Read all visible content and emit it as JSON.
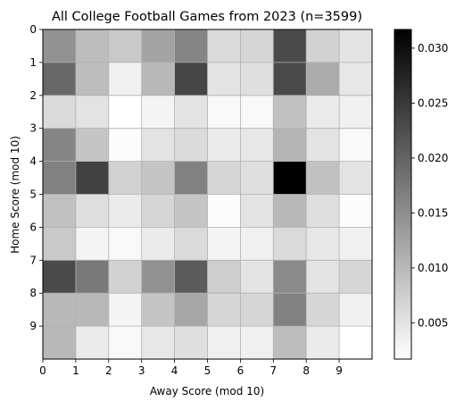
{
  "chart_data": {
    "type": "heatmap",
    "title": "All College Football Games from 2023 (n=3599)",
    "xlabel": "Away Score (mod 10)",
    "ylabel": "Home Score (mod 10)",
    "x_ticks": [
      "0",
      "1",
      "2",
      "3",
      "4",
      "5",
      "6",
      "7",
      "8",
      "9"
    ],
    "y_ticks": [
      "0",
      "1",
      "2",
      "3",
      "4",
      "5",
      "6",
      "7",
      "8",
      "9"
    ],
    "grid": true,
    "colormap": "Greys",
    "colorbar": {
      "range": [
        0.0017,
        0.0317
      ],
      "ticks": [
        "0.005",
        "0.010",
        "0.015",
        "0.020",
        "0.025",
        "0.030"
      ],
      "tick_values": [
        0.005,
        0.01,
        0.015,
        0.02,
        0.025,
        0.03
      ]
    },
    "values": [
      [
        0.0145,
        0.0095,
        0.008,
        0.0125,
        0.016,
        0.006,
        0.0065,
        0.023,
        0.007,
        0.005
      ],
      [
        0.0195,
        0.0095,
        0.0035,
        0.01,
        0.0235,
        0.005,
        0.0055,
        0.023,
        0.0115,
        0.0045
      ],
      [
        0.006,
        0.005,
        0.0017,
        0.003,
        0.005,
        0.0025,
        0.0025,
        0.009,
        0.004,
        0.0035
      ],
      [
        0.016,
        0.0085,
        0.002,
        0.005,
        0.006,
        0.004,
        0.0045,
        0.0105,
        0.005,
        0.0025
      ],
      [
        0.0165,
        0.024,
        0.007,
        0.0085,
        0.0165,
        0.0065,
        0.0055,
        0.0317,
        0.009,
        0.005
      ],
      [
        0.009,
        0.0055,
        0.004,
        0.0065,
        0.0085,
        0.002,
        0.005,
        0.01,
        0.0055,
        0.002
      ],
      [
        0.008,
        0.003,
        0.0025,
        0.004,
        0.006,
        0.003,
        0.0035,
        0.006,
        0.0045,
        0.0035
      ],
      [
        0.023,
        0.0175,
        0.007,
        0.0145,
        0.021,
        0.0075,
        0.005,
        0.0155,
        0.005,
        0.0065
      ],
      [
        0.01,
        0.01,
        0.003,
        0.0085,
        0.012,
        0.0065,
        0.0065,
        0.0165,
        0.0065,
        0.0035
      ],
      [
        0.01,
        0.004,
        0.0025,
        0.0045,
        0.0055,
        0.0035,
        0.0035,
        0.0095,
        0.004,
        0.0017
      ]
    ]
  }
}
